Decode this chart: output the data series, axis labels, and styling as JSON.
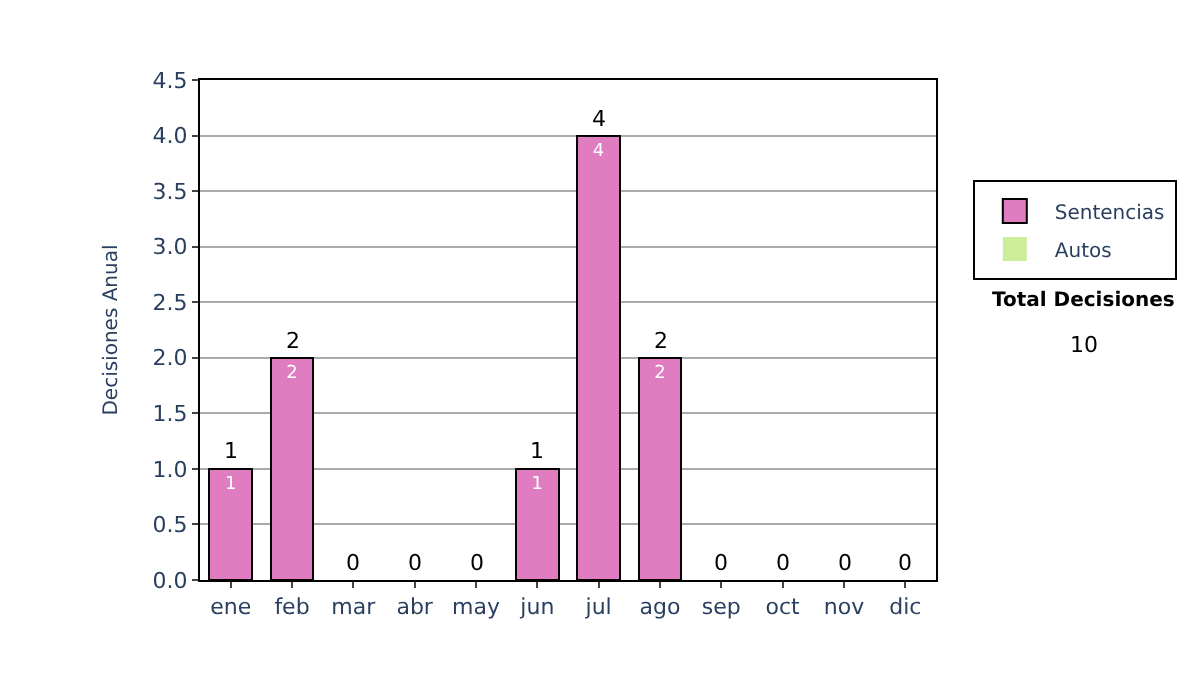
{
  "chart_data": {
    "type": "bar",
    "stacked": true,
    "ylabel": "Decisiones Anual",
    "categories": [
      "ene",
      "feb",
      "mar",
      "abr",
      "may",
      "jun",
      "jul",
      "ago",
      "sep",
      "oct",
      "nov",
      "dic"
    ],
    "series": [
      {
        "name": "Sentencias",
        "color": "#e07cc0",
        "values": [
          1,
          2,
          0,
          0,
          0,
          1,
          4,
          2,
          0,
          0,
          0,
          0
        ],
        "value_labels": [
          "1",
          "2",
          null,
          null,
          null,
          "1",
          "4",
          "2",
          null,
          null,
          null,
          null
        ]
      },
      {
        "name": "Autos",
        "color": "#ccee99",
        "values": [
          0,
          0,
          0,
          0,
          0,
          0,
          0,
          0,
          0,
          0,
          0,
          0
        ]
      }
    ],
    "totals": [
      "1",
      "2",
      "0",
      "0",
      "0",
      "1",
      "4",
      "2",
      "0",
      "0",
      "0",
      "0"
    ],
    "ylim": [
      0,
      4.5
    ],
    "yticks": [
      {
        "value": 0,
        "label": "0.0"
      },
      {
        "value": 0.5,
        "label": "0.5"
      },
      {
        "value": 1,
        "label": "1.0"
      },
      {
        "value": 1.5,
        "label": "1.5"
      },
      {
        "value": 2,
        "label": "2.0"
      },
      {
        "value": 2.5,
        "label": "2.5"
      },
      {
        "value": 3,
        "label": "3.0"
      },
      {
        "value": 3.5,
        "label": "3.5"
      },
      {
        "value": 4,
        "label": "4.0"
      },
      {
        "value": 4.5,
        "label": "4.5"
      }
    ],
    "grid": "y",
    "legend": "right",
    "annotations": [
      "Total Decisiones",
      "10"
    ]
  }
}
